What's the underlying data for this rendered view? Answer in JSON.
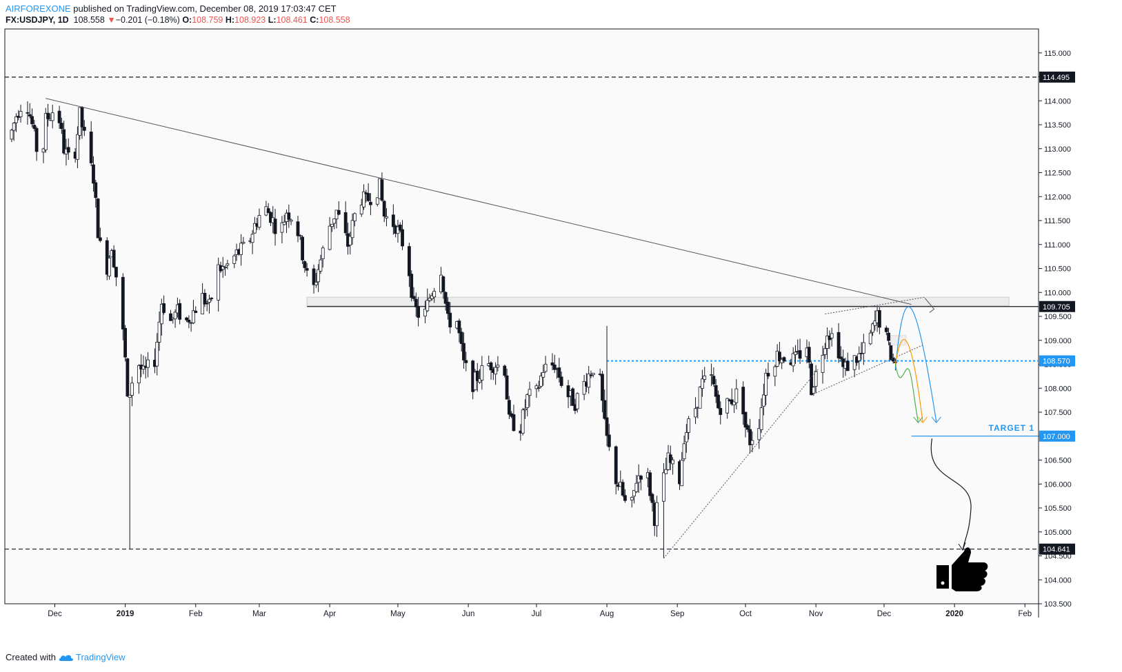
{
  "header": {
    "author": "AIRFOREXONE",
    "published": " published on TradingView.com, December 08, 2019 17:03:47 CET",
    "symbol": "FX:USDJPY, 1D",
    "last": "108.558",
    "change_arrow": "▼",
    "change": "−0.201 (−0.18%)",
    "o_label": "O:",
    "o": "108.759",
    "h_label": "H:",
    "h": "108.923",
    "l_label": "L:",
    "l": "108.461",
    "c_label": "C:",
    "c": "108.558"
  },
  "footer": {
    "created_with": "Created with",
    "brand": "TradingView"
  },
  "colors": {
    "up": "#ffffff",
    "down": "#131722",
    "accent": "#2196f3",
    "red": "#ef5350",
    "orange": "#ff9800",
    "green": "#4caf50"
  },
  "chart_data": {
    "type": "candlestick",
    "yaxis": {
      "min": 103.5,
      "max": 115.5,
      "ticks": [
        "115.000",
        "114.500",
        "114.000",
        "113.500",
        "113.000",
        "112.500",
        "112.000",
        "111.500",
        "111.000",
        "110.500",
        "110.000",
        "109.500",
        "109.000",
        "108.500",
        "108.000",
        "107.500",
        "107.000",
        "106.500",
        "106.000",
        "105.500",
        "105.000",
        "104.500",
        "104.000",
        "103.500"
      ]
    },
    "xaxis": {
      "labels": [
        {
          "text": "Dec",
          "date": "2018-12-01",
          "bold": false
        },
        {
          "text": "2019",
          "date": "2019-01-01",
          "bold": true
        },
        {
          "text": "Feb",
          "date": "2019-02-01",
          "bold": false
        },
        {
          "text": "Mar",
          "date": "2019-03-01",
          "bold": false
        },
        {
          "text": "Apr",
          "date": "2019-04-01",
          "bold": false
        },
        {
          "text": "May",
          "date": "2019-05-01",
          "bold": false
        },
        {
          "text": "Jun",
          "date": "2019-06-01",
          "bold": false
        },
        {
          "text": "Jul",
          "date": "2019-07-01",
          "bold": false
        },
        {
          "text": "Aug",
          "date": "2019-08-01",
          "bold": false
        },
        {
          "text": "Sep",
          "date": "2019-09-01",
          "bold": false
        },
        {
          "text": "Oct",
          "date": "2019-10-01",
          "bold": false
        },
        {
          "text": "Nov",
          "date": "2019-11-01",
          "bold": false
        },
        {
          "text": "Dec",
          "date": "2019-12-01",
          "bold": false
        },
        {
          "text": "2020",
          "date": "2020-01-01",
          "bold": true
        },
        {
          "text": "Feb",
          "date": "2020-02-01",
          "bold": false
        }
      ]
    },
    "price_path": [
      [
        "2018-11-12",
        113.2
      ],
      [
        "2018-11-15",
        113.7
      ],
      [
        "2018-11-19",
        114.1
      ],
      [
        "2018-11-22",
        113.5
      ],
      [
        "2018-11-26",
        112.5
      ],
      [
        "2018-11-28",
        113.6
      ],
      [
        "2018-12-03",
        113.9
      ],
      [
        "2018-12-06",
        113.0
      ],
      [
        "2018-12-10",
        112.6
      ],
      [
        "2018-12-13",
        113.7
      ],
      [
        "2018-12-17",
        112.8
      ],
      [
        "2018-12-19",
        112.4
      ],
      [
        "2018-12-21",
        111.3
      ],
      [
        "2018-12-24",
        110.3
      ],
      [
        "2018-12-27",
        111.0
      ],
      [
        "2018-12-31",
        109.7
      ],
      [
        "2019-01-02",
        108.6
      ],
      [
        "2019-01-03",
        107.7
      ],
      [
        "2019-01-07",
        108.6
      ],
      [
        "2019-01-10",
        108.3
      ],
      [
        "2019-01-15",
        108.6
      ],
      [
        "2019-01-18",
        109.8
      ],
      [
        "2019-01-22",
        109.4
      ],
      [
        "2019-01-25",
        109.6
      ],
      [
        "2019-01-29",
        109.4
      ],
      [
        "2019-02-01",
        109.6
      ],
      [
        "2019-02-05",
        109.9
      ],
      [
        "2019-02-08",
        109.7
      ],
      [
        "2019-02-12",
        110.5
      ],
      [
        "2019-02-15",
        110.5
      ],
      [
        "2019-02-20",
        110.8
      ],
      [
        "2019-02-25",
        111.0
      ],
      [
        "2019-02-28",
        111.4
      ],
      [
        "2019-03-04",
        111.8
      ],
      [
        "2019-03-07",
        111.6
      ],
      [
        "2019-03-11",
        111.2
      ],
      [
        "2019-03-14",
        111.7
      ],
      [
        "2019-03-18",
        111.5
      ],
      [
        "2019-03-21",
        110.8
      ],
      [
        "2019-03-25",
        109.9
      ],
      [
        "2019-03-28",
        110.5
      ],
      [
        "2019-04-02",
        111.4
      ],
      [
        "2019-04-05",
        111.7
      ],
      [
        "2019-04-10",
        111.0
      ],
      [
        "2019-04-15",
        112.0
      ],
      [
        "2019-04-18",
        111.9
      ],
      [
        "2019-04-24",
        112.2
      ],
      [
        "2019-04-26",
        111.6
      ],
      [
        "2019-05-01",
        111.4
      ],
      [
        "2019-05-06",
        110.8
      ],
      [
        "2019-05-09",
        109.7
      ],
      [
        "2019-05-13",
        109.4
      ],
      [
        "2019-05-16",
        109.9
      ],
      [
        "2019-05-21",
        110.5
      ],
      [
        "2019-05-24",
        109.4
      ],
      [
        "2019-05-28",
        109.4
      ],
      [
        "2019-05-31",
        108.5
      ],
      [
        "2019-06-04",
        108.1
      ],
      [
        "2019-06-07",
        108.3
      ],
      [
        "2019-06-11",
        108.5
      ],
      [
        "2019-06-14",
        108.5
      ],
      [
        "2019-06-18",
        108.4
      ],
      [
        "2019-06-20",
        107.3
      ],
      [
        "2019-06-25",
        107.2
      ],
      [
        "2019-06-28",
        107.8
      ],
      [
        "2019-07-02",
        107.9
      ],
      [
        "2019-07-05",
        108.4
      ],
      [
        "2019-07-10",
        108.5
      ],
      [
        "2019-07-15",
        107.9
      ],
      [
        "2019-07-19",
        107.7
      ],
      [
        "2019-07-24",
        108.2
      ],
      [
        "2019-07-29",
        108.6
      ],
      [
        "2019-08-01",
        107.2
      ],
      [
        "2019-08-05",
        106.2
      ],
      [
        "2019-08-08",
        105.9
      ],
      [
        "2019-08-12",
        105.3
      ],
      [
        "2019-08-15",
        106.1
      ],
      [
        "2019-08-19",
        106.4
      ],
      [
        "2019-08-23",
        105.3
      ],
      [
        "2019-08-26",
        105.9
      ],
      [
        "2019-08-29",
        106.5
      ],
      [
        "2019-09-03",
        106.1
      ],
      [
        "2019-09-05",
        107.0
      ],
      [
        "2019-09-10",
        107.6
      ],
      [
        "2019-09-13",
        108.1
      ],
      [
        "2019-09-17",
        108.2
      ],
      [
        "2019-09-20",
        107.6
      ],
      [
        "2019-09-25",
        107.7
      ],
      [
        "2019-09-30",
        108.0
      ],
      [
        "2019-10-02",
        107.2
      ],
      [
        "2019-10-04",
        106.9
      ],
      [
        "2019-10-08",
        107.3
      ],
      [
        "2019-10-11",
        108.3
      ],
      [
        "2019-10-16",
        108.7
      ],
      [
        "2019-10-21",
        108.6
      ],
      [
        "2019-10-24",
        108.6
      ],
      [
        "2019-10-29",
        108.9
      ],
      [
        "2019-10-31",
        108.0
      ],
      [
        "2019-11-04",
        108.6
      ],
      [
        "2019-11-07",
        109.2
      ],
      [
        "2019-11-11",
        109.0
      ],
      [
        "2019-11-14",
        108.4
      ],
      [
        "2019-11-19",
        108.6
      ],
      [
        "2019-11-22",
        108.7
      ],
      [
        "2019-11-26",
        109.1
      ],
      [
        "2019-11-29",
        109.5
      ],
      [
        "2019-12-02",
        109.2
      ],
      [
        "2019-12-05",
        108.7
      ],
      [
        "2019-12-06",
        108.56
      ]
    ],
    "levels": [
      {
        "price": 114.495,
        "label": "114.495",
        "style": "dashed",
        "color": "#131722"
      },
      {
        "price": 109.705,
        "label": "109.705",
        "style": "solid",
        "color": "#131722"
      },
      {
        "price": 108.57,
        "label": "108.570",
        "style": "dotted",
        "color": "#2196f3"
      },
      {
        "price": 107.0,
        "label": "107.000",
        "style": "solid",
        "color": "#2196f3"
      },
      {
        "price": 104.641,
        "label": "104.641",
        "style": "dashed",
        "color": "#131722"
      }
    ],
    "target_label": "TARGET 1",
    "trendlines": [
      {
        "from": [
          "2018-11-27",
          114.05
        ],
        "to": [
          "2019-12-13",
          109.75
        ],
        "style": "solid"
      },
      {
        "from": [
          "2019-08-26",
          104.45
        ],
        "to": [
          "2019-11-02",
          108.4
        ],
        "style": "dotted"
      },
      {
        "from": [
          "2019-11-01",
          107.9
        ],
        "to": [
          "2019-12-18",
          108.9
        ],
        "style": "dotted"
      },
      {
        "from": [
          "2019-11-05",
          109.55
        ],
        "to": [
          "2019-12-19",
          109.9
        ],
        "style": "dotted"
      }
    ]
  }
}
